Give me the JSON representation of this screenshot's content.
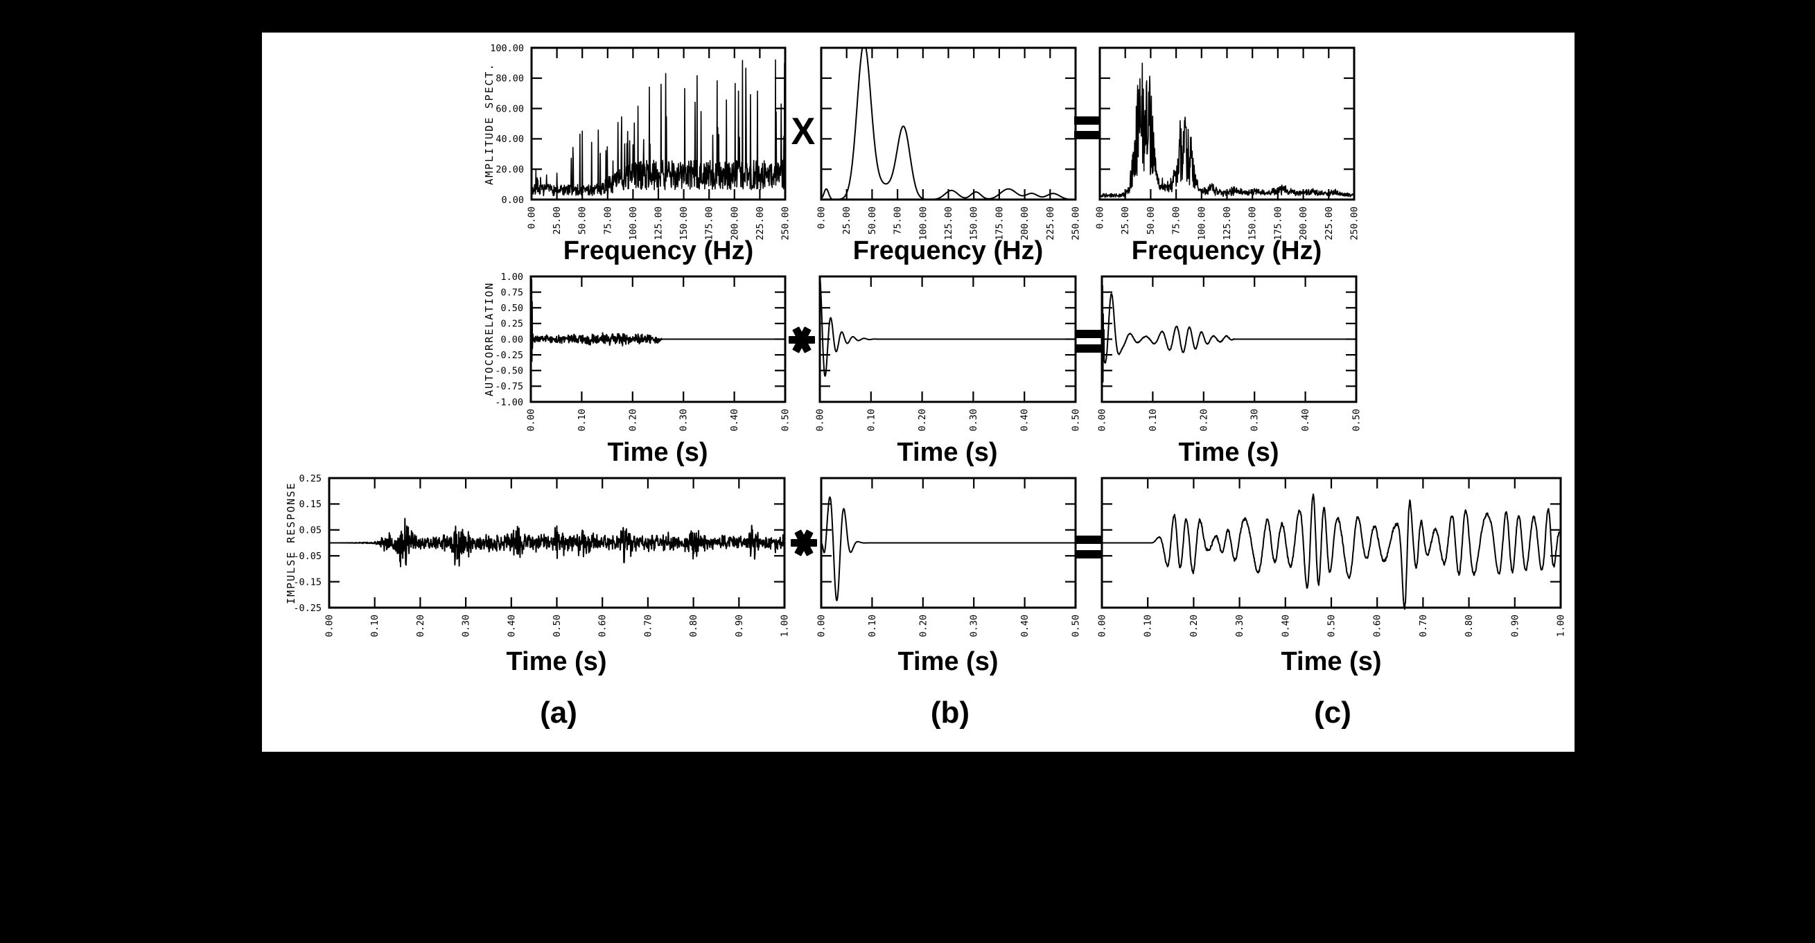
{
  "figure": {
    "background": "#000000",
    "panel_background": "#ffffff",
    "ink": "#000000",
    "rows": [
      "amplitude spectra vs frequency",
      "autocorrelations vs time",
      "impulse response / wavelet / seismogram vs time"
    ],
    "relationship": "(a) combined with (b) gives (c): multiplication in the frequency domain, convolution in the time domain"
  },
  "operators": {
    "multiply": "X",
    "convolve": "✱",
    "equals": "="
  },
  "labels": {
    "panels": [
      "(a)",
      "(b)",
      "(c)"
    ]
  },
  "chart_data": [
    {
      "id": "1a",
      "panel": "a",
      "series_name": "amplitude spectrum of impulse response",
      "type": "line",
      "xlabel": "Frequency (Hz)",
      "ylabel": "AMPLITUDE SPECT.",
      "xlim": [
        0,
        250
      ],
      "ylim": [
        0,
        100
      ],
      "xticks": [
        0,
        25,
        50,
        75,
        100,
        125,
        150,
        175,
        200,
        225,
        250
      ],
      "xtick_labels": [
        "0.00",
        "25.00",
        "50.00",
        "75.00",
        "100.00",
        "125.00",
        "150.00",
        "175.00",
        "200.00",
        "225.00",
        "250.00"
      ],
      "yticks": [
        100,
        80,
        60,
        40,
        20,
        0
      ],
      "ytick_labels": [
        "100.00",
        "80.00",
        "60.00",
        "40.00",
        "20.00",
        "0.00"
      ],
      "description": "Noisy, jagged spectrum; floor ~5-25 at low frequency, dense spikes reaching 90-100 that strengthen above ~80 Hz out to 250 Hz.",
      "signal": {
        "type": "spiky_spectrum",
        "seed": 7,
        "n": 760,
        "base": [
          10,
          16
        ],
        "spike_chance": 0.1,
        "spike_small": 30,
        "spike_big": 62
      }
    },
    {
      "id": "1b",
      "panel": "b",
      "series_name": "amplitude spectrum of source wavelet",
      "type": "line",
      "xlabel": "Frequency (Hz)",
      "ylabel": "",
      "xlim": [
        0,
        250
      ],
      "ylim": [
        0,
        100
      ],
      "xticks": [
        0,
        25,
        50,
        75,
        100,
        125,
        150,
        175,
        200,
        225,
        250
      ],
      "xtick_labels": [
        "0.00",
        "25.00",
        "50.00",
        "75.00",
        "100.00",
        "125.00",
        "150.00",
        "175.00",
        "200.00",
        "225.00",
        "250.00"
      ],
      "yticks": [
        0,
        20,
        40,
        60,
        80,
        100
      ],
      "ytick_labels": [],
      "description": "Smooth spectrum: dominant peak of ~100 at ~42 Hz, secondary peak ~45 at ~80 Hz, small ripples (<8) from 120-250 Hz.",
      "signal": {
        "type": "smooth_peaks",
        "n": 500,
        "gaussians": [
          [
            7,
            5,
            3.2
          ],
          [
            100,
            42,
            9.5
          ],
          [
            46,
            81,
            9
          ],
          [
            9,
            60,
            18
          ],
          [
            6,
            128,
            9
          ],
          [
            5,
            152,
            7
          ],
          [
            7,
            184,
            11
          ],
          [
            4,
            207,
            8
          ],
          [
            4,
            228,
            9
          ]
        ]
      }
    },
    {
      "id": "1c",
      "panel": "c",
      "series_name": "product spectrum (seismogram)",
      "type": "line",
      "xlabel": "Frequency (Hz)",
      "ylabel": "",
      "xlim": [
        0,
        250
      ],
      "ylim": [
        0,
        100
      ],
      "xticks": [
        0,
        25,
        50,
        75,
        100,
        125,
        150,
        175,
        200,
        225,
        250
      ],
      "xtick_labels": [
        "0.00",
        "25.00",
        "50.00",
        "75.00",
        "100.00",
        "125.00",
        "150.00",
        "175.00",
        "200.00",
        "225.00",
        "250.00"
      ],
      "yticks": [
        0,
        20,
        40,
        60,
        80,
        100
      ],
      "ytick_labels": [],
      "description": "Spiky band-limited spectrum: main energy 25-55 Hz with peaks to ~95, secondary cluster 70-95 Hz (~50), near zero above ~110 Hz.",
      "signal": {
        "type": "spiky_product",
        "seed": 11,
        "n": 760,
        "gaussians": [
          [
            85,
            40,
            7.5
          ],
          [
            58,
            49,
            5
          ],
          [
            52,
            84,
            9
          ],
          [
            10,
            60,
            15
          ],
          [
            7,
            110,
            9
          ],
          [
            5,
            133,
            9
          ],
          [
            4,
            155,
            10
          ],
          [
            6,
            180,
            12
          ],
          [
            4,
            207,
            10
          ],
          [
            3,
            230,
            10
          ]
        ]
      }
    },
    {
      "id": "2a",
      "panel": "a",
      "series_name": "autocorrelation of impulse response",
      "type": "line",
      "xlabel": "Time (s)",
      "ylabel": "AUTOCORRELATION",
      "xlim": [
        0,
        0.5
      ],
      "ylim": [
        -1,
        1
      ],
      "xticks": [
        0,
        0.1,
        0.2,
        0.3,
        0.4,
        0.5
      ],
      "xtick_labels": [
        "0.00",
        "0.10",
        "0.20",
        "0.30",
        "0.40",
        "0.50"
      ],
      "yticks": [
        1,
        0.75,
        0.5,
        0.25,
        0,
        -0.25,
        -0.5,
        -0.75,
        -1
      ],
      "ytick_labels": [
        "1.00",
        "0.75",
        "0.50",
        "0.25",
        "0.00",
        "-0.25",
        "-0.50",
        "-0.75",
        "-1.00"
      ],
      "description": "Unit spike at zero lag (down to ~-0.35), then low-level noise within ~±0.08 out to ~0.26 s, exactly zero afterwards.",
      "signal": {
        "type": "spike_noise",
        "seed": 3,
        "amp": 0.065,
        "end": 0.26,
        "head": [
          [
            0,
            0.05
          ],
          [
            0.0005,
            1
          ],
          [
            0.001,
            -0.3
          ],
          [
            0.0015,
            0.95
          ],
          [
            0.002,
            -0.35
          ],
          [
            0.0025,
            0.6
          ],
          [
            0.003,
            -0.15
          ],
          [
            0.004,
            0.08
          ]
        ]
      }
    },
    {
      "id": "2b",
      "panel": "b",
      "series_name": "autocorrelation of wavelet",
      "type": "line",
      "xlabel": "Time (s)",
      "ylabel": "",
      "xlim": [
        0,
        0.5
      ],
      "ylim": [
        -1,
        1
      ],
      "xticks": [
        0,
        0.1,
        0.2,
        0.3,
        0.4,
        0.5
      ],
      "xtick_labels": [
        "0.00",
        "0.10",
        "0.20",
        "0.30",
        "0.40",
        "0.50"
      ],
      "yticks": [
        1,
        0.75,
        0.5,
        0.25,
        0,
        -0.25,
        -0.5,
        -0.75,
        -1
      ],
      "ytick_labels": [],
      "description": "Damped ~46 Hz oscillation starting at 1.0, first trough ~-0.55, decayed to zero by ~0.09 s, flat to 0.5 s.",
      "signal": {
        "type": "damped_osc",
        "freq": 46,
        "tau": 0.02
      }
    },
    {
      "id": "2c",
      "panel": "c",
      "series_name": "autocorrelation of seismogram",
      "type": "line",
      "xlabel": "Time (s)",
      "ylabel": "",
      "xlim": [
        0,
        0.5
      ],
      "ylim": [
        -1,
        1
      ],
      "xticks": [
        0,
        0.1,
        0.2,
        0.3,
        0.4,
        0.5
      ],
      "xtick_labels": [
        "0.00",
        "0.10",
        "0.20",
        "0.30",
        "0.40",
        "0.50"
      ],
      "yticks": [
        1,
        0.75,
        0.5,
        0.25,
        0,
        -0.25,
        -0.5,
        -0.75,
        -1
      ],
      "ytick_labels": [],
      "description": "Zero-lag spike to 1.0 (trough ~-0.68), rebound to ~+0.78 at ~0.02 s, then modulated ~±0.2 oscillation until ~0.26 s, zero beyond.",
      "signal": {
        "type": "spike_plus_osc",
        "seed": 5,
        "end": 0.26,
        "osc_amp": 0.21,
        "osc_freq": 37,
        "mid": {
          "amp": 0.78,
          "freq": 34,
          "center": 0.019,
          "width": 0.016
        },
        "head": [
          [
            0,
            0
          ],
          [
            0.0004,
            0.95
          ],
          [
            0.0009,
            -0.5
          ],
          [
            0.0014,
            0.85
          ],
          [
            0.002,
            -0.68
          ],
          [
            0.0026,
            0.4
          ],
          [
            0.0032,
            -0.35
          ],
          [
            0.004,
            0.15
          ]
        ]
      }
    },
    {
      "id": "3a",
      "panel": "a",
      "series_name": "impulse response (reflectivity series)",
      "type": "line",
      "xlabel": "Time (s)",
      "ylabel": "IMPULSE RESPONSE",
      "xlim": [
        0,
        1
      ],
      "ylim": [
        -0.25,
        0.25
      ],
      "xticks": [
        0,
        0.1,
        0.2,
        0.3,
        0.4,
        0.5,
        0.6,
        0.7,
        0.8,
        0.9,
        1.0
      ],
      "xtick_labels": [
        "0.00",
        "0.10",
        "0.20",
        "0.30",
        "0.40",
        "0.50",
        "0.60",
        "0.70",
        "0.80",
        "0.90",
        "1.00"
      ],
      "yticks": [
        0.25,
        0.15,
        0.05,
        -0.05,
        -0.15,
        -0.25
      ],
      "ytick_labels": [
        "0.25",
        "0.15",
        "0.05",
        "-0.05",
        "-0.15",
        "-0.25"
      ],
      "description": "Quiet until ~0.1 s, then stationary spiky noise mostly within ±0.05 with bursts to ~±0.13 (near 0.17, 0.28, 0.5 s) continuing to 1.0 s.",
      "signal": {
        "type": "reflectivity",
        "seed": 9,
        "amp": 0.075,
        "bursts": [
          [
            0.165,
            0.012,
            1.6
          ],
          [
            0.175,
            0.008,
            1.1
          ],
          [
            0.28,
            0.01,
            1.5
          ],
          [
            0.3,
            0.012,
            0.9
          ],
          [
            0.41,
            0.015,
            0.8
          ],
          [
            0.5,
            0.01,
            1.15
          ],
          [
            0.56,
            0.012,
            0.7
          ],
          [
            0.65,
            0.012,
            0.85
          ],
          [
            0.8,
            0.015,
            0.6
          ],
          [
            0.93,
            0.01,
            1.0
          ]
        ]
      }
    },
    {
      "id": "3b",
      "panel": "b",
      "series_name": "source wavelet",
      "type": "line",
      "xlabel": "Time (s)",
      "ylabel": "",
      "xlim": [
        0,
        0.5
      ],
      "ylim": [
        -1.15,
        1.15
      ],
      "xticks": [
        0,
        0.1,
        0.2,
        0.3,
        0.4,
        0.5
      ],
      "xtick_labels": [
        "0.00",
        "0.10",
        "0.20",
        "0.30",
        "0.40",
        "0.50"
      ],
      "yticks": [
        1.15,
        0.69,
        0.23,
        -0.23,
        -0.69,
        -1.15
      ],
      "ytick_labels": [],
      "description": "~34 Hz wavelet: peak near +0.95 at ~0.016 s, deepest trough ~-1.0 at ~0.03 s, smaller swings, fully decayed by ~0.1 s, flat to 0.5 s.",
      "signal": {
        "type": "wavelet",
        "amp": 1.04,
        "freq": 34
      }
    },
    {
      "id": "3c",
      "panel": "c",
      "series_name": "synthetic seismogram",
      "type": "line",
      "xlabel": "Time (s)",
      "ylabel": "",
      "xlim": [
        0,
        1
      ],
      "ylim": [
        -1.1,
        1.1
      ],
      "xticks": [
        0,
        0.1,
        0.2,
        0.3,
        0.4,
        0.5,
        0.6,
        0.7,
        0.8,
        0.9,
        1.0
      ],
      "xtick_labels": [
        "0.00",
        "0.10",
        "0.20",
        "0.30",
        "0.40",
        "0.50",
        "0.60",
        "0.70",
        "0.80",
        "0.90",
        "1.00"
      ],
      "yticks": [
        1.1,
        0.66,
        0.22,
        -0.22,
        -0.66,
        -1.1
      ],
      "ytick_labels": [],
      "description": "Flat until ~0.12 s, then band-limited ~30 Hz wave train with varying envelope; largest excursion near 0.66 s clips below the frame; continues to 1.0 s.",
      "signal": {
        "type": "seismogram",
        "seed": 13,
        "freq": 29,
        "bursts": [
          [
            0.205,
            0.018,
            0.33
          ],
          [
            0.34,
            0.03,
            0.18
          ],
          [
            0.455,
            0.02,
            0.22
          ],
          [
            0.545,
            0.018,
            0.38
          ],
          [
            0.662,
            0.012,
            0.95
          ],
          [
            0.69,
            0.015,
            0.3
          ],
          [
            0.87,
            0.03,
            0.15
          ],
          [
            0.975,
            0.015,
            0.3
          ]
        ]
      }
    }
  ]
}
